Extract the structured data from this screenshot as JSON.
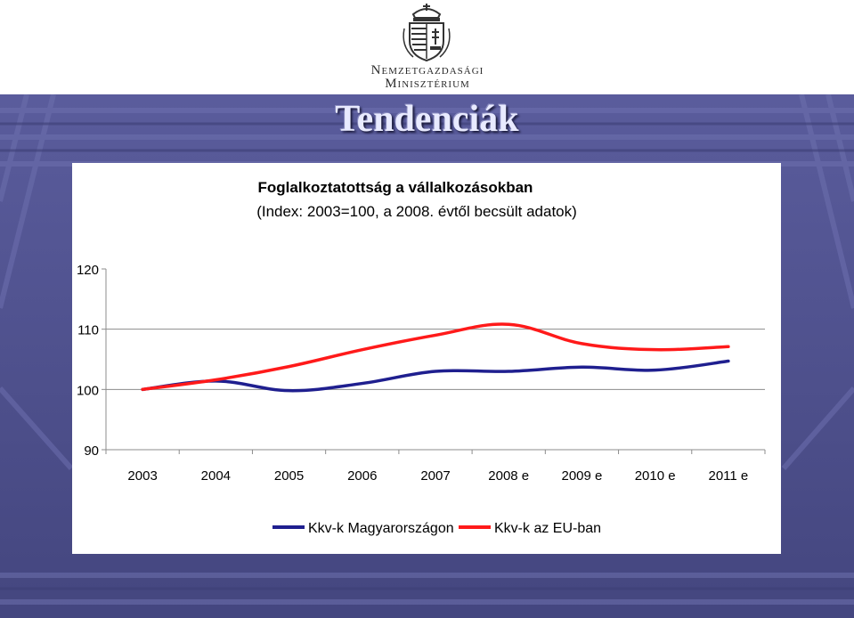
{
  "header": {
    "ministry_line1": "Nemzetgazdasági",
    "ministry_line2": "Minisztérium"
  },
  "slide": {
    "title": "Tendenciák",
    "background_color": "#4b4d8c"
  },
  "chart_data": {
    "type": "line",
    "title": "Foglalkoztatottság a vállalkozásokban",
    "subtitle": "(Index: 2003=100, a 2008. évtől becsült adatok)",
    "categories": [
      "2003",
      "2004",
      "2005",
      "2006",
      "2007",
      "2008 e",
      "2009 e",
      "2010 e",
      "2011 e"
    ],
    "yticks": [
      "90",
      "100",
      "110",
      "120"
    ],
    "ylim": [
      90,
      120
    ],
    "grid": "horizontal at 100 and 110",
    "legend_position": "bottom",
    "series": [
      {
        "name": "Kkv-k Magyarországon",
        "color": "#1f1f8f",
        "values": [
          100,
          101.4,
          99.8,
          101,
          103,
          103,
          103.7,
          103.2,
          104.7
        ]
      },
      {
        "name": "Kkv-k az EU-ban",
        "color": "#ff1a1a",
        "values": [
          100,
          101.6,
          103.8,
          106.6,
          109,
          110.8,
          107.6,
          106.6,
          107.1
        ]
      }
    ]
  }
}
